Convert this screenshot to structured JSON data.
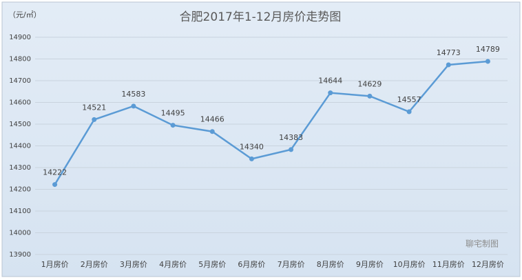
{
  "chart_data": {
    "type": "line",
    "title": "合肥2017年1-12月房价走势图",
    "unit_label": "（元/㎡）",
    "watermark": "聊宅制图",
    "categories": [
      "1月房价",
      "2月房价",
      "3月房价",
      "4月房价",
      "5月房价",
      "6月房价",
      "7月房价",
      "8月房价",
      "9月房价",
      "10月房价",
      "11月房价",
      "12月房价"
    ],
    "series": [
      {
        "name": "房价",
        "color": "#5b9bd5",
        "values": [
          14222,
          14521,
          14583,
          14495,
          14466,
          14340,
          14383,
          14644,
          14629,
          14557,
          14773,
          14789
        ]
      }
    ],
    "ylim": [
      13900,
      14900
    ],
    "yticks": [
      13900,
      14000,
      14100,
      14200,
      14300,
      14400,
      14500,
      14600,
      14700,
      14800,
      14900
    ],
    "grid": true
  }
}
